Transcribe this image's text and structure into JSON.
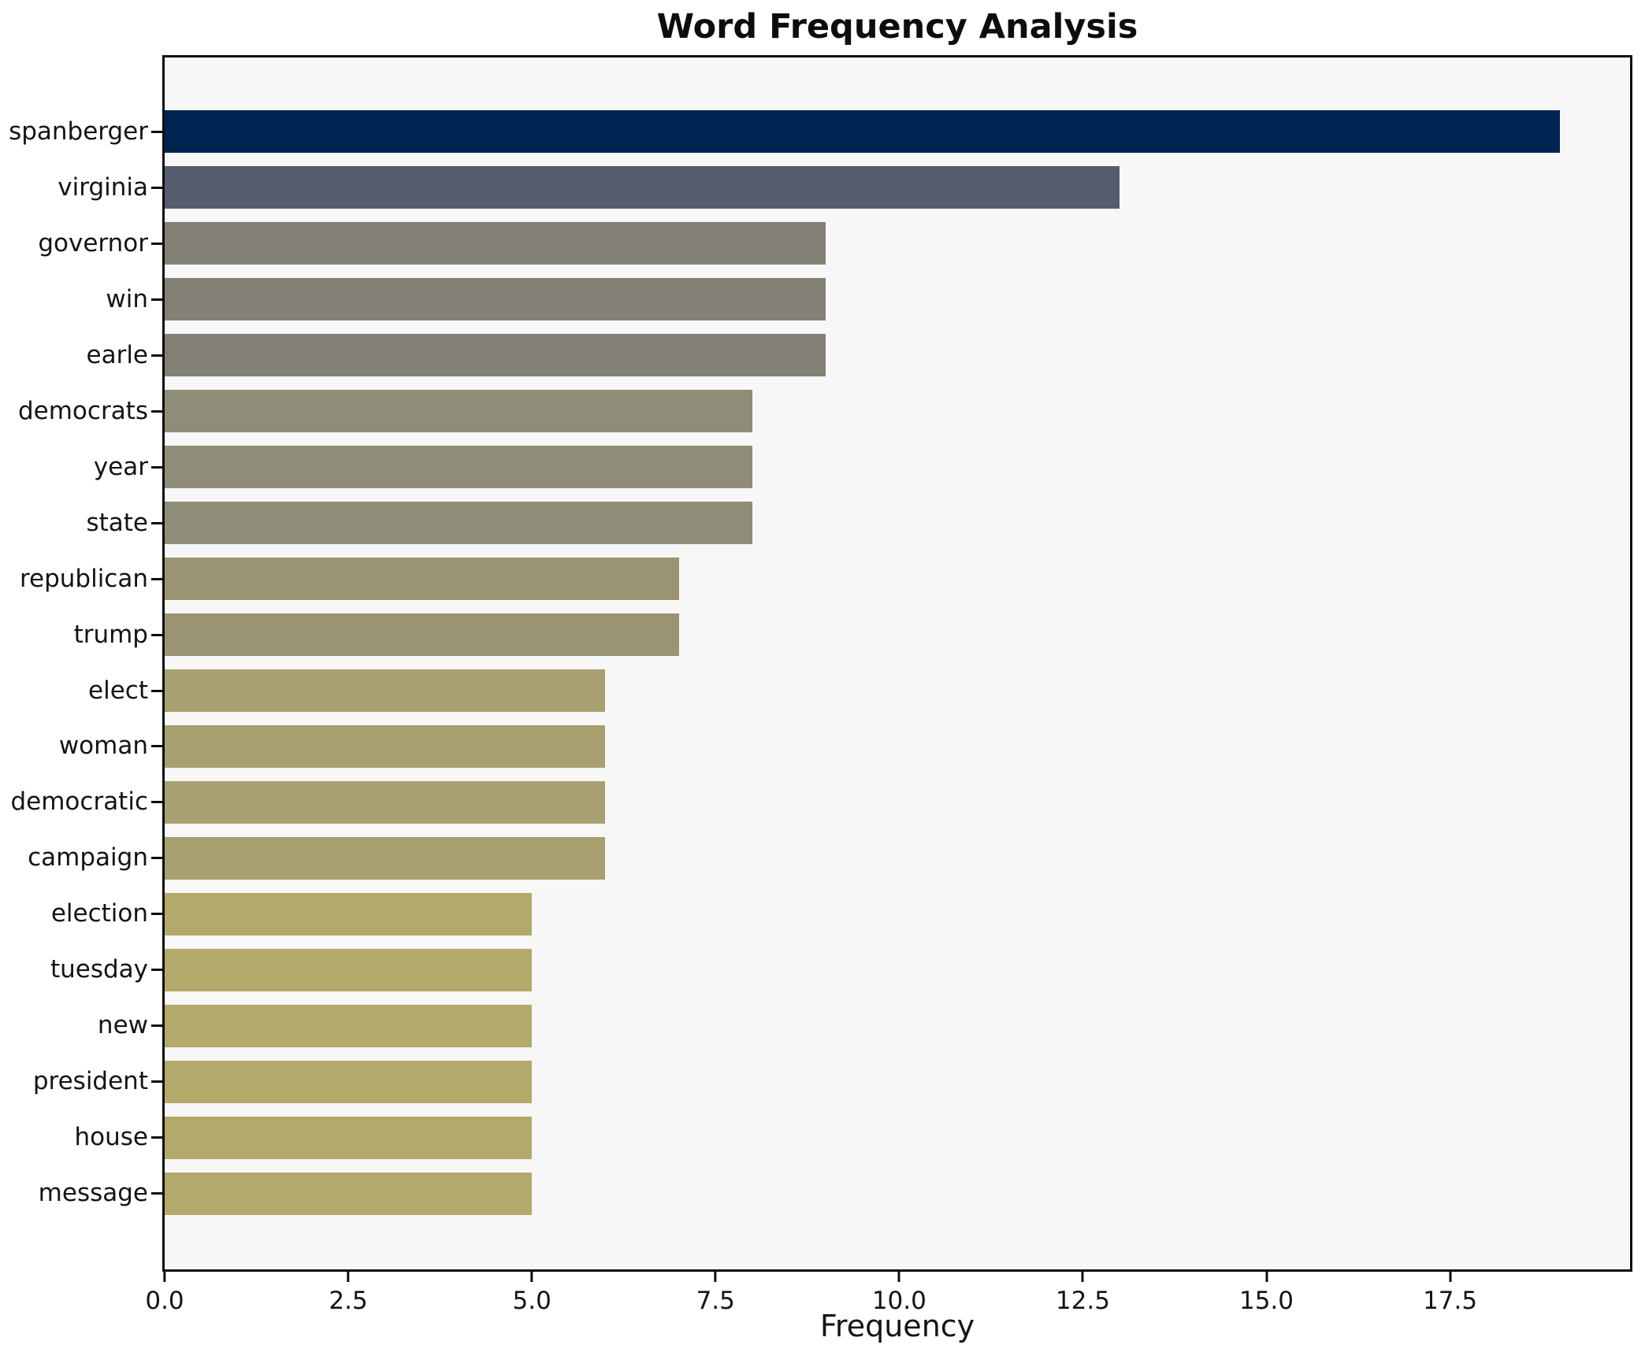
{
  "chart_data": {
    "type": "bar",
    "orientation": "horizontal",
    "title": "Word Frequency Analysis",
    "xlabel": "Frequency",
    "ylabel": "",
    "categories": [
      "spanberger",
      "virginia",
      "governor",
      "win",
      "earle",
      "democrats",
      "year",
      "state",
      "republican",
      "trump",
      "elect",
      "woman",
      "democratic",
      "campaign",
      "election",
      "tuesday",
      "new",
      "president",
      "house",
      "message"
    ],
    "values": [
      19,
      13,
      9,
      9,
      9,
      8,
      8,
      8,
      7,
      7,
      6,
      6,
      6,
      6,
      5,
      5,
      5,
      5,
      5,
      5
    ],
    "bar_colors": [
      "#002452",
      "#545c6e",
      "#838176",
      "#838176",
      "#838176",
      "#8f8c79",
      "#8f8c79",
      "#8f8c79",
      "#9b9473",
      "#9b9473",
      "#a9a072",
      "#a9a072",
      "#a9a072",
      "#a9a072",
      "#b3a96b",
      "#b3a96b",
      "#b3a96b",
      "#b3a96b",
      "#b3a96b",
      "#b3a96b"
    ],
    "xlim": [
      0,
      19.95
    ],
    "xticks": [
      0,
      2.5,
      5,
      7.5,
      10,
      12.5,
      15,
      17.5
    ],
    "xtick_labels": [
      "0.0",
      "2.5",
      "5.0",
      "7.5",
      "10.0",
      "12.5",
      "15.0",
      "17.5"
    ],
    "grid": false,
    "legend": null,
    "colormap": "cividis (darker = higher frequency)",
    "plot_background": "#f7f7f7",
    "figure_background": "#ffffff",
    "spine_color": "#0d0d0d"
  }
}
